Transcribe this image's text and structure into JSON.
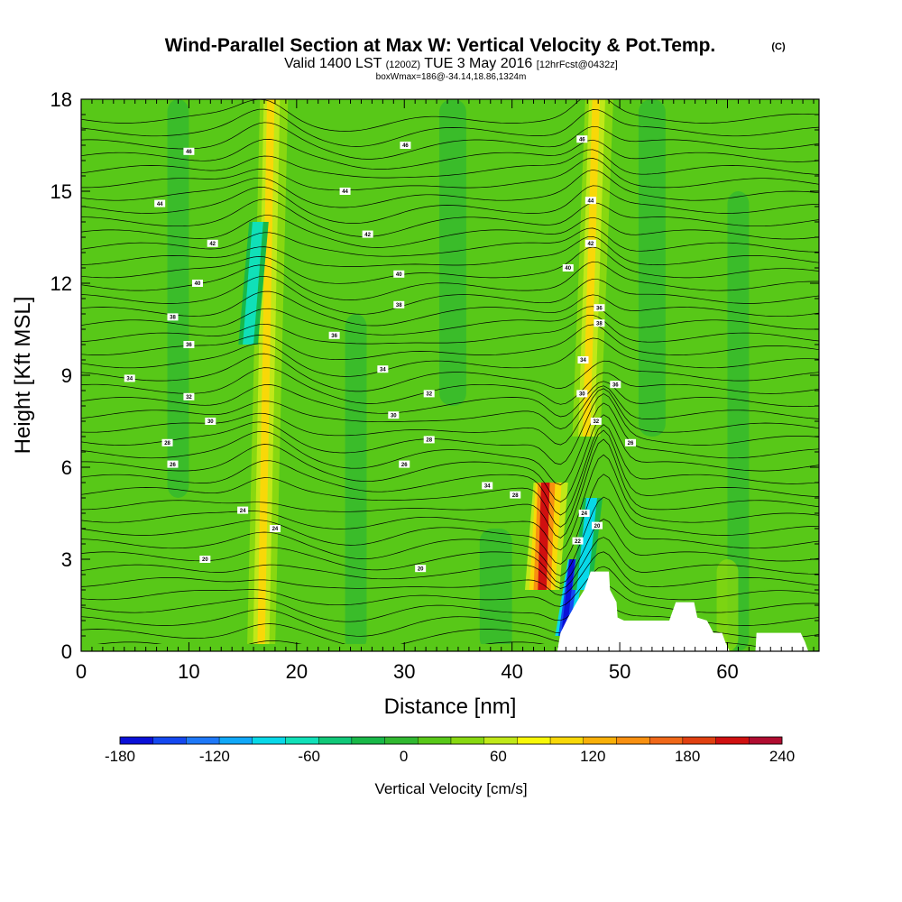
{
  "chart_data": {
    "type": "heatmap",
    "title": "Wind-Parallel Section at Max W: Vertical Velocity & Pot.Temp.",
    "title_mark": "(C)",
    "subtitle_main": "Valid 1400 LST",
    "subtitle_z": "(1200Z)",
    "subtitle_date": "TUE 3 May 2016",
    "subtitle_fcst": "[12hrFcst@0432z]",
    "subtitle2": "boxWmax=186@-34.14,18.86,1324m",
    "xlabel": "Distance [nm]",
    "ylabel": "Height [Kft MSL]",
    "xlim": [
      0,
      68.5
    ],
    "ylim": [
      0,
      18
    ],
    "xticks": [
      "0",
      "10",
      "20",
      "30",
      "40",
      "50",
      "60"
    ],
    "yticks": [
      "0",
      "3",
      "6",
      "9",
      "12",
      "15",
      "18"
    ],
    "grid": false,
    "colorbar": {
      "label": "Vertical Velocity [cm/s]",
      "tick_labels": [
        "-180",
        "-120",
        "-60",
        "0",
        "60",
        "120",
        "180",
        "240"
      ],
      "range": [
        -180,
        240
      ],
      "colors": [
        "#0a10d8",
        "#1448f0",
        "#1e78f8",
        "#10a8f8",
        "#08d8e8",
        "#10e0b8",
        "#10c878",
        "#18b848",
        "#30b830",
        "#58c818",
        "#88d810",
        "#c0e818",
        "#f8f808",
        "#f8d808",
        "#f8b008",
        "#f89010",
        "#f06818",
        "#e04010",
        "#d01010",
        "#b00c30"
      ]
    },
    "vertical_velocity_features": [
      {
        "x": 16.7,
        "z_range": [
          0,
          18
        ],
        "value": 60,
        "kind": "updraft"
      },
      {
        "x": 15.5,
        "z_range": [
          10,
          14
        ],
        "value": -60,
        "kind": "downdraft"
      },
      {
        "x": 46.9,
        "z_range": [
          7,
          18
        ],
        "value": 60,
        "kind": "updraft"
      },
      {
        "x": 42.8,
        "z_range": [
          2,
          5.5
        ],
        "value": 180,
        "kind": "updraft"
      },
      {
        "x": 44.8,
        "z_range": [
          0.5,
          3
        ],
        "value": -180,
        "kind": "downdraft"
      },
      {
        "x": 46.5,
        "z_range": [
          2,
          5
        ],
        "value": -90,
        "kind": "downdraft"
      }
    ],
    "terrain": [
      [
        44.2,
        0
      ],
      [
        44.5,
        0.6
      ],
      [
        45.2,
        1.1
      ],
      [
        46,
        1.6
      ],
      [
        46.7,
        2
      ],
      [
        47.3,
        2.6
      ],
      [
        49,
        2.6
      ],
      [
        49.1,
        2
      ],
      [
        49.7,
        1.6
      ],
      [
        49.8,
        1.1
      ],
      [
        50.4,
        1
      ],
      [
        54.6,
        1
      ],
      [
        55.2,
        1.6
      ],
      [
        56.9,
        1.6
      ],
      [
        57.2,
        1.1
      ],
      [
        58.1,
        1
      ],
      [
        58.7,
        0.6
      ],
      [
        59.5,
        0.6
      ],
      [
        59.8,
        0.3
      ],
      [
        60.2,
        0
      ],
      [
        62.6,
        0
      ],
      [
        62.7,
        0.6
      ],
      [
        66.8,
        0.6
      ],
      [
        67.2,
        0.3
      ],
      [
        67.5,
        0
      ]
    ],
    "theta_contour_labels": [
      {
        "label": "20",
        "x": 11.5,
        "z": 3.0
      },
      {
        "label": "20",
        "x": 31.5,
        "z": 2.7
      },
      {
        "label": "24",
        "x": 15.0,
        "z": 4.6
      },
      {
        "label": "24",
        "x": 18.0,
        "z": 4.0
      },
      {
        "label": "26",
        "x": 8.5,
        "z": 6.1
      },
      {
        "label": "26",
        "x": 30.0,
        "z": 6.1
      },
      {
        "label": "26",
        "x": 51.0,
        "z": 6.8
      },
      {
        "label": "28",
        "x": 8.0,
        "z": 6.8
      },
      {
        "label": "28",
        "x": 32.3,
        "z": 6.9
      },
      {
        "label": "28",
        "x": 40.3,
        "z": 5.1
      },
      {
        "label": "30",
        "x": 12.0,
        "z": 7.5
      },
      {
        "label": "30",
        "x": 29.0,
        "z": 7.7
      },
      {
        "label": "30",
        "x": 46.5,
        "z": 8.4
      },
      {
        "label": "32",
        "x": 10.0,
        "z": 8.3
      },
      {
        "label": "32",
        "x": 32.3,
        "z": 8.4
      },
      {
        "label": "32",
        "x": 47.8,
        "z": 7.5
      },
      {
        "label": "34",
        "x": 4.5,
        "z": 8.9
      },
      {
        "label": "34",
        "x": 28.0,
        "z": 9.2
      },
      {
        "label": "34",
        "x": 37.7,
        "z": 5.4
      },
      {
        "label": "34",
        "x": 46.6,
        "z": 9.5
      },
      {
        "label": "36",
        "x": 10.0,
        "z": 10.0
      },
      {
        "label": "36",
        "x": 23.5,
        "z": 10.3
      },
      {
        "label": "36",
        "x": 49.6,
        "z": 8.7
      },
      {
        "label": "38",
        "x": 8.5,
        "z": 10.9
      },
      {
        "label": "38",
        "x": 29.5,
        "z": 11.3
      },
      {
        "label": "38",
        "x": 48.1,
        "z": 10.7
      },
      {
        "label": "40",
        "x": 10.8,
        "z": 12.0
      },
      {
        "label": "40",
        "x": 29.5,
        "z": 12.3
      },
      {
        "label": "40",
        "x": 45.2,
        "z": 12.5
      },
      {
        "label": "42",
        "x": 12.2,
        "z": 13.3
      },
      {
        "label": "42",
        "x": 26.6,
        "z": 13.6
      },
      {
        "label": "42",
        "x": 47.3,
        "z": 13.3
      },
      {
        "label": "44",
        "x": 7.3,
        "z": 14.6
      },
      {
        "label": "44",
        "x": 24.5,
        "z": 15.0
      },
      {
        "label": "44",
        "x": 47.3,
        "z": 14.7
      },
      {
        "label": "46",
        "x": 10.0,
        "z": 16.3
      },
      {
        "label": "46",
        "x": 30.1,
        "z": 16.5
      },
      {
        "label": "46",
        "x": 46.5,
        "z": 16.7
      },
      {
        "label": "36",
        "x": 48.1,
        "z": 11.2
      },
      {
        "label": "24",
        "x": 46.7,
        "z": 4.5
      },
      {
        "label": "22",
        "x": 46.1,
        "z": 3.6
      },
      {
        "label": "20",
        "x": 47.9,
        "z": 4.1
      }
    ]
  }
}
